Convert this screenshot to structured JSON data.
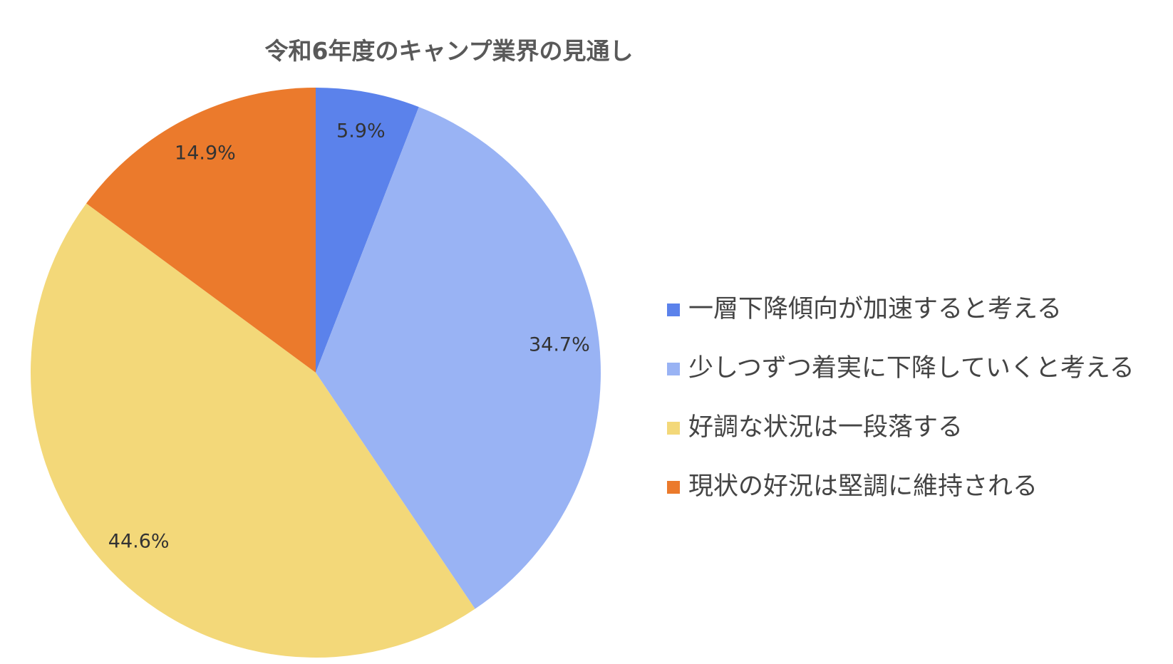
{
  "chart_data": {
    "type": "pie",
    "title": "令和6年度のキャンプ業界の見通し",
    "legend_position": "right",
    "slices": [
      {
        "label": "一層下降傾向が加速すると考える",
        "value": 5.9,
        "display": "5.9%",
        "color": "#5b82eb"
      },
      {
        "label": "少しつずつ着実に下降していくと考える",
        "value": 34.7,
        "display": "34.7%",
        "color": "#99b3f4"
      },
      {
        "label": "好調な状況は一段落する",
        "value": 44.6,
        "display": "44.6%",
        "color": "#f3d879"
      },
      {
        "label": "現状の好況は堅調に維持される",
        "value": 14.9,
        "display": "14.9%",
        "color": "#eb7a2c"
      }
    ]
  }
}
